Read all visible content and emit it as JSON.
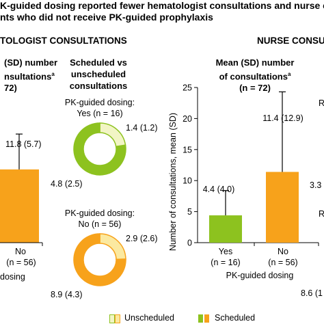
{
  "title_line1": "K-guided dosing reported fewer hematologist consultations and nurse co",
  "title_line2": "nts who did not receive PK-guided prophylaxis",
  "left_section": "TOLOGIST CONSULTATIONS",
  "right_section": "NURSE CONSU",
  "col1_header_line1": "(SD) number",
  "col1_header_line2": "nsultations",
  "col1_header_sup": "a",
  "col1_header_line3": "72)",
  "col2_header_line1": "Scheduled vs",
  "col2_header_line2": "unscheduled",
  "col2_header_line3": "consultations",
  "col3_header_line1": "Mean (SD) number",
  "col3_header_line2": "of consultations",
  "col3_header_sup": "a",
  "col3_header_line3": "(n = 72)",
  "right_edge_label_r1": "R",
  "right_edge_label_r2": "R",
  "right_edge_value1": "3.3",
  "right_edge_value2": "8.6 (1",
  "chart_data": [
    {
      "type": "bar",
      "categories": [
        "No"
      ],
      "category_sublabels": [
        "(n = 56)"
      ],
      "values": [
        11.8
      ],
      "sd": [
        5.7
      ],
      "value_labels": [
        "11.8 (5.7)"
      ],
      "xlabel": "dosing",
      "colors": [
        "#F7A21B"
      ]
    },
    {
      "type": "pie",
      "header_line1": "PK-guided dosing:",
      "header_line2": "Yes (n = 16)",
      "labels": [
        "Unscheduled",
        "Scheduled"
      ],
      "values": [
        1.4,
        4.8
      ],
      "sd": [
        1.2,
        2.5
      ],
      "value_labels": [
        "1.4 (1.2)",
        "4.8 (2.5)"
      ],
      "colors": [
        "#F2F5C5",
        "#8DC21F"
      ]
    },
    {
      "type": "pie",
      "header_line1": "PK-guided dosing:",
      "header_line2": "No (n = 56)",
      "labels": [
        "Unscheduled",
        "Scheduled"
      ],
      "values": [
        2.9,
        8.9
      ],
      "sd": [
        2.6,
        4.3
      ],
      "value_labels": [
        "2.9 (2.6)",
        "8.9 (4.3)"
      ],
      "colors": [
        "#FBE9A0",
        "#F7A21B"
      ]
    },
    {
      "type": "bar",
      "categories": [
        "Yes",
        "No"
      ],
      "category_sublabels": [
        "(n = 16)",
        "(n = 56)"
      ],
      "values": [
        4.4,
        11.4
      ],
      "sd": [
        4.0,
        12.9
      ],
      "value_labels": [
        "4.4 (4.0)",
        "11.4 (12.9)"
      ],
      "xlabel": "PK-guided dosing",
      "ylabel": "Number of consultations, mean (SD)",
      "ylim": [
        0,
        25
      ],
      "yticks": [
        0,
        5,
        10,
        15,
        20,
        25
      ],
      "colors": [
        "#8DC21F",
        "#F7A21B"
      ]
    }
  ],
  "legend": {
    "unscheduled_label": "Unscheduled",
    "scheduled_label": "Scheduled",
    "unscheduled_colors": [
      "#F2F5C5",
      "#FBE9A0"
    ],
    "scheduled_colors": [
      "#8DC21F",
      "#F7A21B"
    ]
  }
}
